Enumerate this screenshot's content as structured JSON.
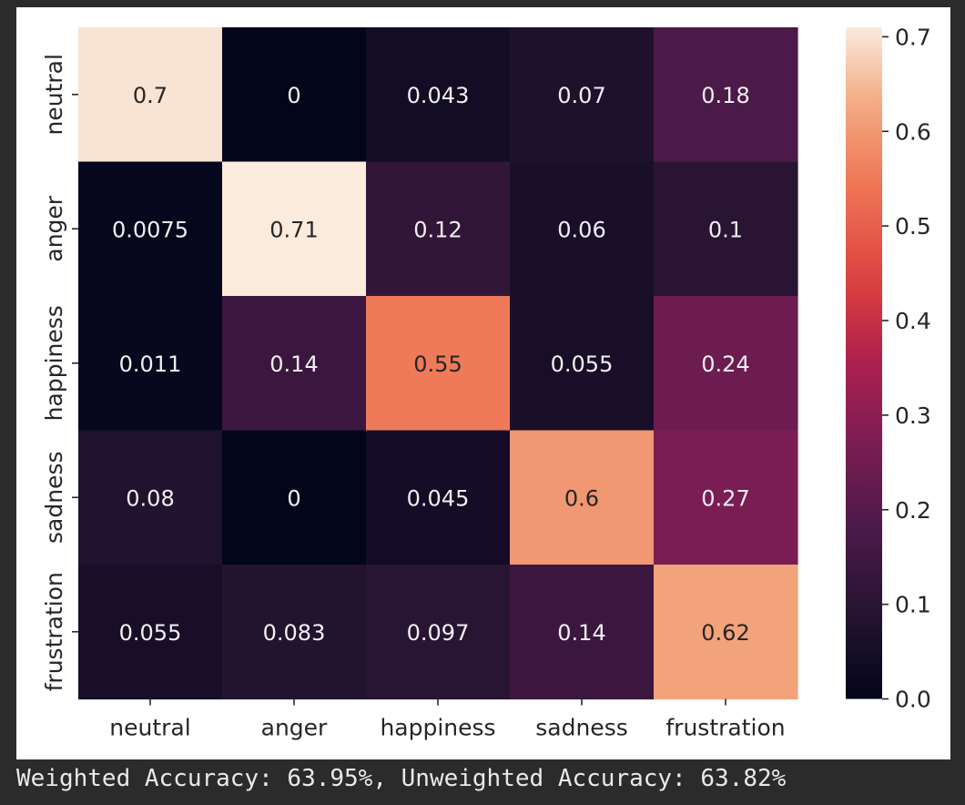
{
  "chart_data": {
    "type": "heatmap",
    "rows": [
      "neutral",
      "anger",
      "happiness",
      "sadness",
      "frustration"
    ],
    "columns": [
      "neutral",
      "anger",
      "happiness",
      "sadness",
      "frustration"
    ],
    "values": [
      [
        0.7,
        0,
        0.043,
        0.07,
        0.18
      ],
      [
        0.0075,
        0.71,
        0.12,
        0.06,
        0.1
      ],
      [
        0.011,
        0.14,
        0.55,
        0.055,
        0.24
      ],
      [
        0.08,
        0,
        0.045,
        0.6,
        0.27
      ],
      [
        0.055,
        0.083,
        0.097,
        0.14,
        0.62
      ]
    ],
    "value_labels": [
      [
        "0.7",
        "0",
        "0.043",
        "0.07",
        "0.18"
      ],
      [
        "0.0075",
        "0.71",
        "0.12",
        "0.06",
        "0.1"
      ],
      [
        "0.011",
        "0.14",
        "0.55",
        "0.055",
        "0.24"
      ],
      [
        "0.08",
        "0",
        "0.045",
        "0.6",
        "0.27"
      ],
      [
        "0.055",
        "0.083",
        "0.097",
        "0.14",
        "0.62"
      ]
    ],
    "colorscale": "rocket",
    "vmin": 0.0,
    "vmax": 0.71,
    "colorbar_ticks": [
      "0.0",
      "0.1",
      "0.2",
      "0.3",
      "0.4",
      "0.5",
      "0.6",
      "0.7"
    ],
    "title": "",
    "xlabel": "",
    "ylabel": "",
    "grid": false
  },
  "output": {
    "text": "Weighted Accuracy: 63.95%, Unweighted Accuracy: 63.82%"
  },
  "colors": {
    "background": "#2b2b2b",
    "figure": "#ffffff",
    "output_text": "#e9e9e9"
  }
}
